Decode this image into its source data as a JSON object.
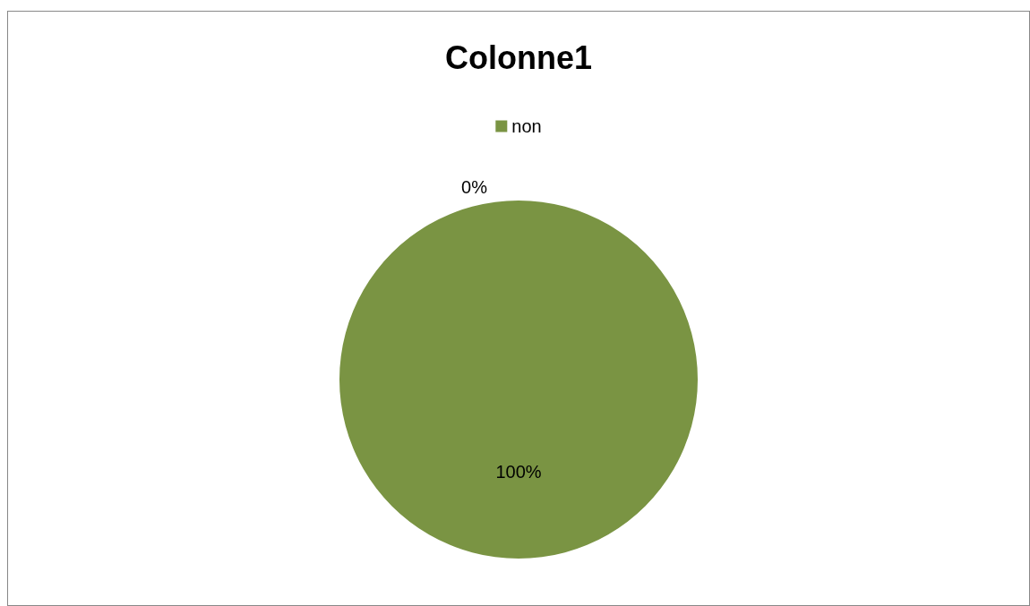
{
  "chart_data": {
    "type": "pie",
    "title": "Colonne1",
    "categories": [
      null,
      "non"
    ],
    "values": [
      0,
      100
    ],
    "colors": [
      "#4f81bd",
      "#7a9443"
    ],
    "value_labels": [
      "0%",
      "100%"
    ],
    "legend": "top"
  }
}
